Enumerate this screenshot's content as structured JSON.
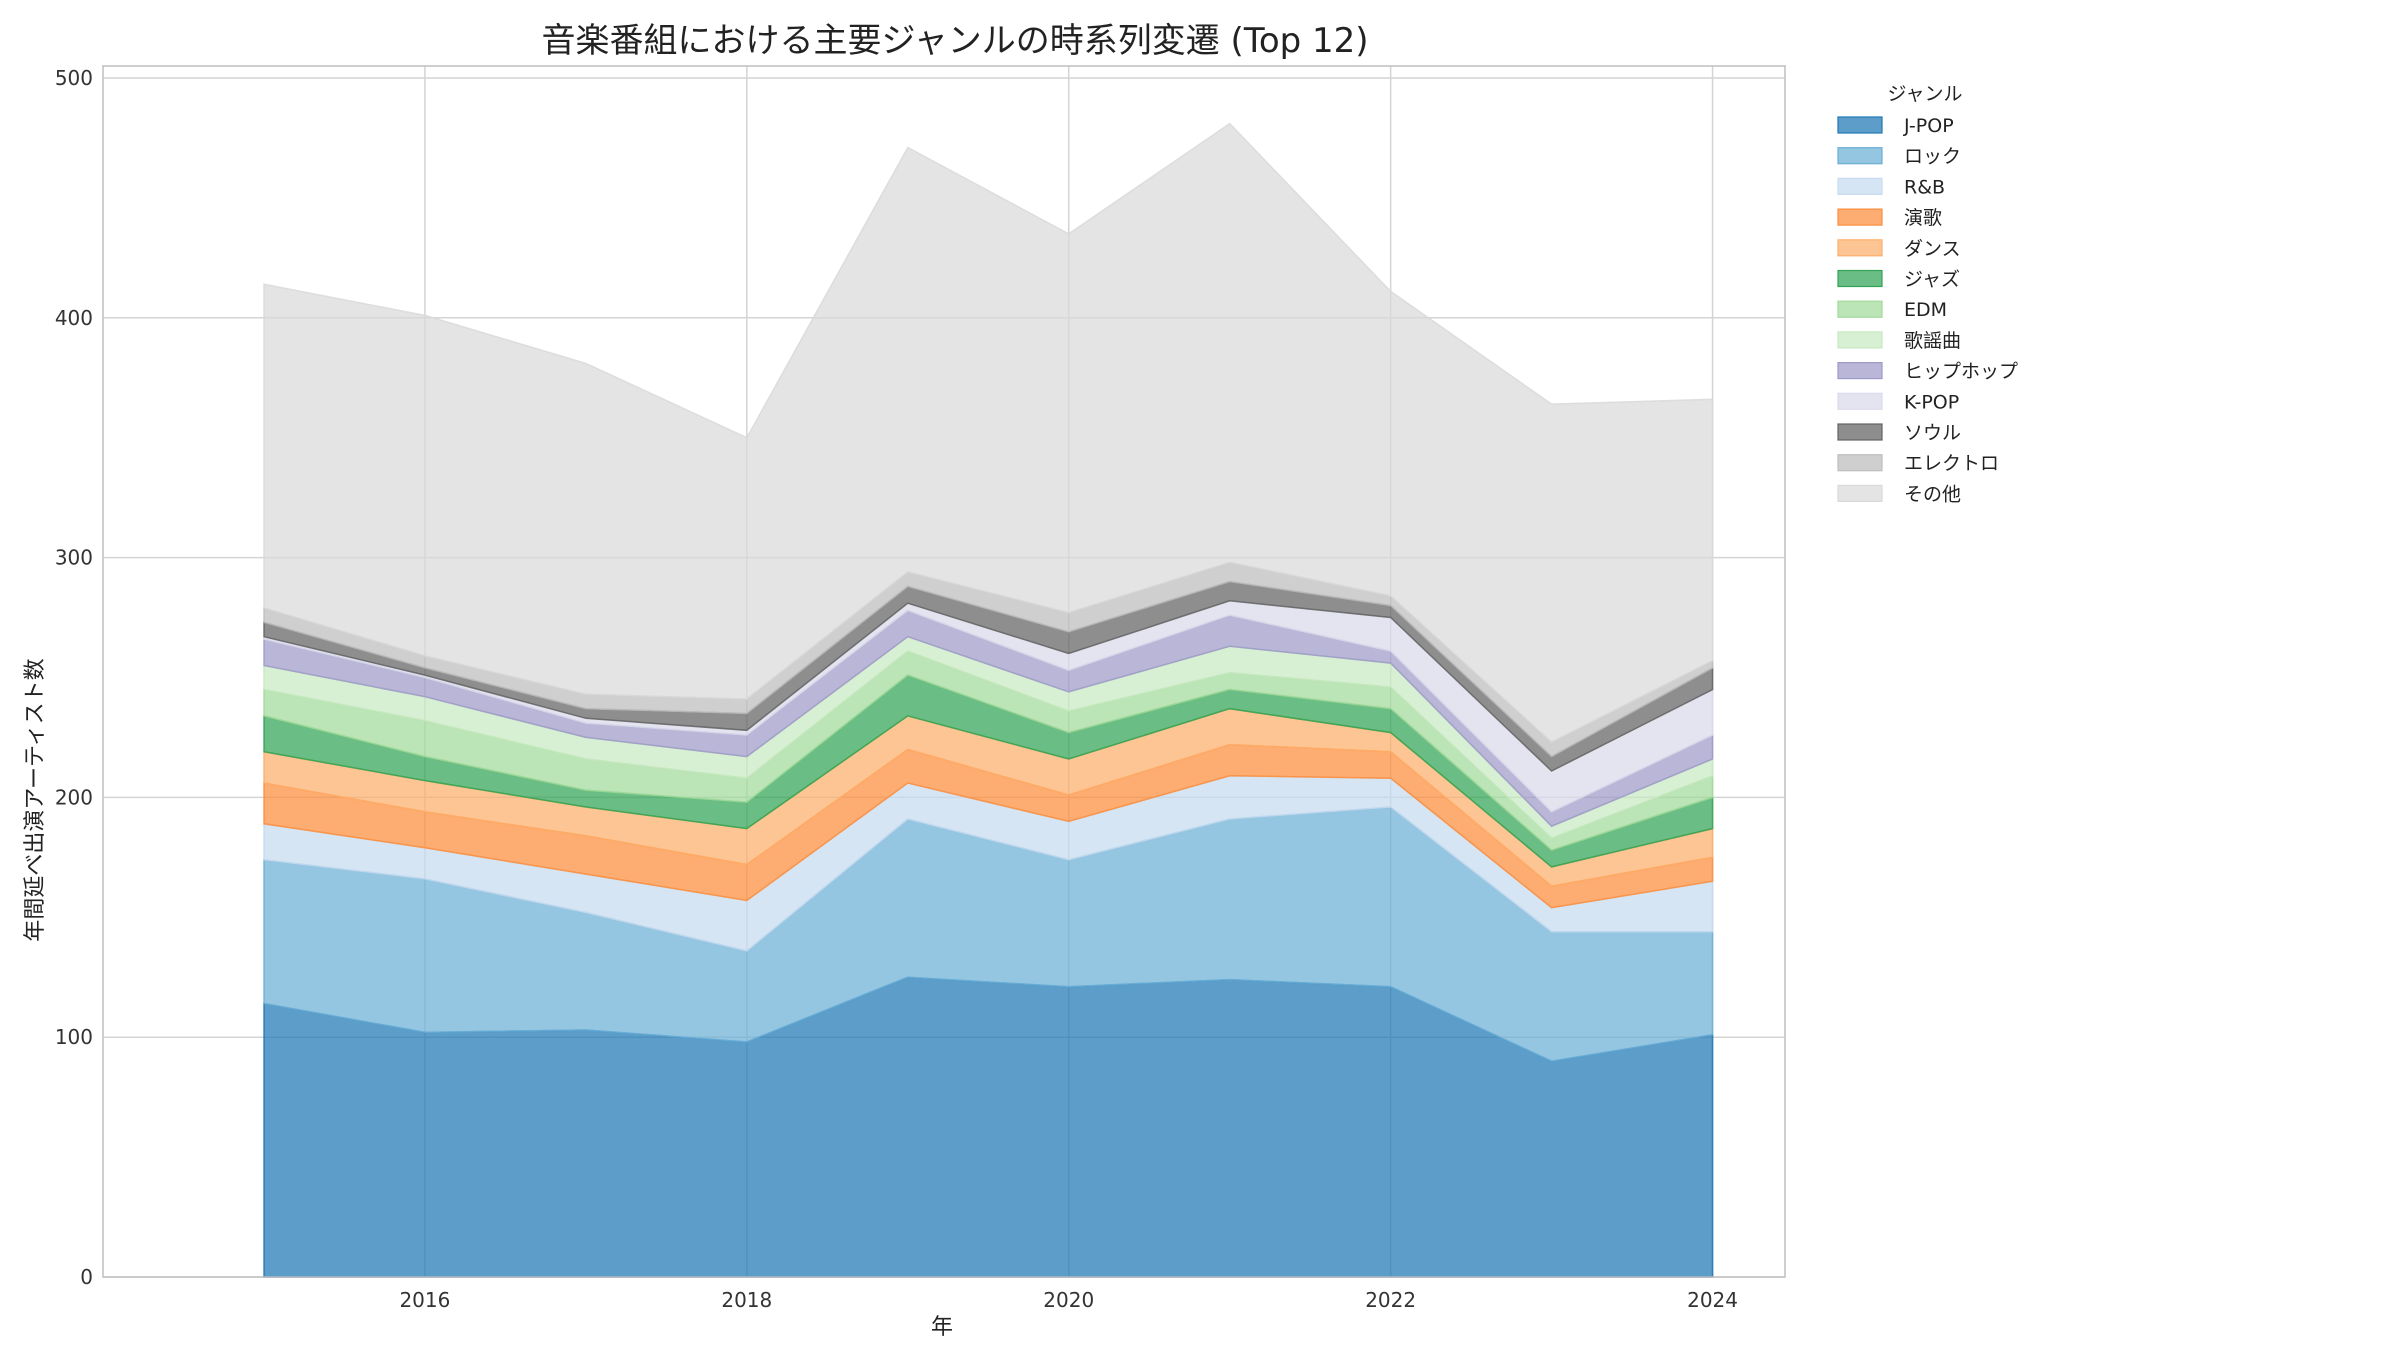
{
  "chart_data": {
    "type": "area",
    "stacked": true,
    "title": "音楽番組における主要ジャンルの時系列変遷 (Top 12)",
    "xlabel": "年",
    "ylabel": "年間延べ出演アーティスト数",
    "x": [
      2015,
      2016,
      2017,
      2018,
      2019,
      2020,
      2021,
      2022,
      2023,
      2024
    ],
    "xlim": [
      2014.0,
      2024.45
    ],
    "ylim": [
      0,
      505
    ],
    "xticks": [
      2016,
      2018,
      2020,
      2022,
      2024
    ],
    "yticks": [
      0,
      100,
      200,
      300,
      400,
      500
    ],
    "grid": true,
    "legend": {
      "title": "ジャンル",
      "placement": "outside-top-right"
    },
    "series": [
      {
        "name": "J-POP",
        "color": "#1f77b4",
        "values": [
          114,
          102,
          103,
          98,
          125,
          121,
          124,
          121,
          90,
          101
        ]
      },
      {
        "name": "ロック",
        "color": "#6baed6",
        "values": [
          60,
          64,
          49,
          38,
          66,
          53,
          67,
          75,
          54,
          43
        ]
      },
      {
        "name": "R&B",
        "color": "#c6dbef",
        "values": [
          15,
          13,
          16,
          21,
          15,
          16,
          18,
          12,
          10,
          21
        ]
      },
      {
        "name": "演歌",
        "color": "#fd8d3c",
        "values": [
          17,
          15,
          16,
          15,
          14,
          11,
          13,
          11,
          9,
          10
        ]
      },
      {
        "name": "ダンス",
        "color": "#fdae6b",
        "values": [
          13,
          13,
          12,
          15,
          14,
          15,
          15,
          8,
          8,
          12
        ]
      },
      {
        "name": "ジャズ",
        "color": "#31a354",
        "values": [
          15,
          10,
          7,
          11,
          17,
          11,
          8,
          10,
          7,
          13
        ]
      },
      {
        "name": "EDM",
        "color": "#a1d99b",
        "values": [
          11,
          15,
          13,
          10,
          10,
          9,
          7,
          9,
          5,
          9
        ]
      },
      {
        "name": "歌謡曲",
        "color": "#c7e9c0",
        "values": [
          10,
          10,
          9,
          9,
          6,
          8,
          11,
          10,
          5,
          7
        ]
      },
      {
        "name": "ヒップホップ",
        "color": "#9e9ac8",
        "values": [
          11,
          8,
          6,
          9,
          11,
          9,
          13,
          5,
          6,
          10
        ]
      },
      {
        "name": "K-POP",
        "color": "#dadaeb",
        "values": [
          1,
          1,
          2,
          2,
          3,
          7,
          6,
          14,
          17,
          19
        ]
      },
      {
        "name": "ソウル",
        "color": "#636363",
        "values": [
          6,
          3,
          4,
          7,
          7,
          9,
          8,
          5,
          6,
          9
        ]
      },
      {
        "name": "エレクトロ",
        "color": "#bdbdbd",
        "values": [
          6,
          5,
          6,
          6,
          6,
          8,
          8,
          4,
          6,
          3
        ]
      },
      {
        "name": "その他",
        "color": "#d9d9d9",
        "values": [
          135,
          142,
          138,
          109,
          177,
          158,
          183,
          127,
          141,
          109
        ]
      }
    ]
  }
}
